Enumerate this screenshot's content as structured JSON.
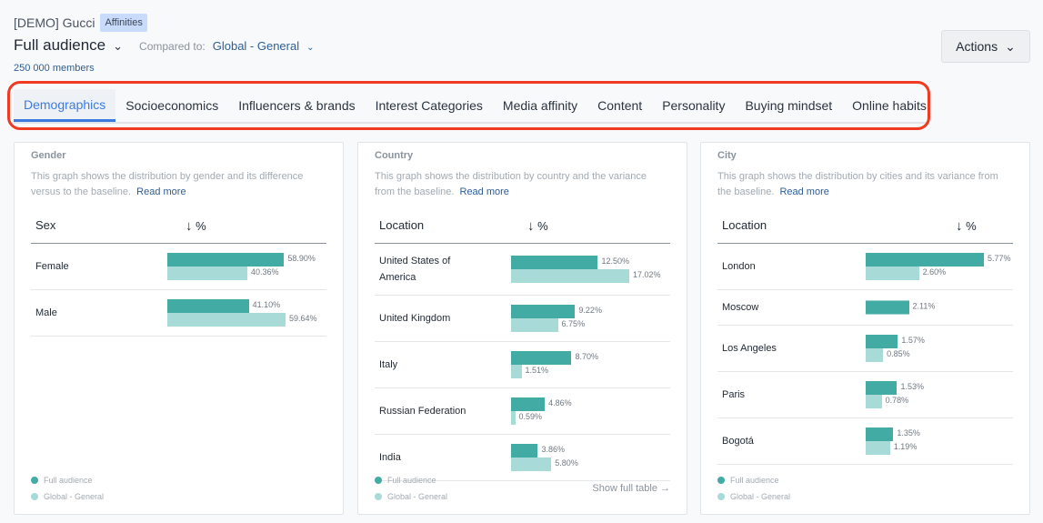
{
  "header": {
    "brand": "[DEMO] Gucci",
    "badge": "Affinities",
    "audience": "Full audience",
    "compared_label": "Compared to:",
    "baseline": "Global - General",
    "members": "250 000 members",
    "actions": "Actions"
  },
  "tabs": [
    "Demographics",
    "Socioeconomics",
    "Influencers & brands",
    "Interest Categories",
    "Media affinity",
    "Content",
    "Personality",
    "Buying mindset",
    "Online habits"
  ],
  "active_tab": 0,
  "colors": {
    "full": "#42aba3",
    "base": "#a8dbd7",
    "accent": "#3b7be0",
    "highlight": "#f03a22"
  },
  "legend": {
    "full": "Full audience",
    "base": "Global - General"
  },
  "read_more": "Read more",
  "show_full": "Show full table →",
  "cards": [
    {
      "title": "Gender",
      "desc": "This graph shows the distribution by gender and its difference versus to the baseline.",
      "col1": "Sex",
      "col2": "%",
      "rows": [
        {
          "label": "Female",
          "full": 58.9,
          "base": 40.36,
          "full_t": "58.90%",
          "base_t": "40.36%"
        },
        {
          "label": "Male",
          "full": 41.1,
          "base": 59.64,
          "full_t": "41.10%",
          "base_t": "59.64%"
        }
      ]
    },
    {
      "title": "Country",
      "desc": "This graph shows the distribution by country and the variance from the baseline.",
      "col1": "Location",
      "col2": "%",
      "rows": [
        {
          "label": "United States of America",
          "full": 12.5,
          "base": 17.02,
          "full_t": "12.50%",
          "base_t": "17.02%"
        },
        {
          "label": "United Kingdom",
          "full": 9.22,
          "base": 6.75,
          "full_t": "9.22%",
          "base_t": "6.75%"
        },
        {
          "label": "Italy",
          "full": 8.7,
          "base": 1.51,
          "full_t": "8.70%",
          "base_t": "1.51%"
        },
        {
          "label": "Russian Federation",
          "full": 4.86,
          "base": 0.59,
          "full_t": "4.86%",
          "base_t": "0.59%"
        },
        {
          "label": "India",
          "full": 3.86,
          "base": 5.8,
          "full_t": "3.86%",
          "base_t": "5.80%"
        }
      ]
    },
    {
      "title": "City",
      "desc": "This graph shows the distribution by cities and its variance from the baseline.",
      "col1": "Location",
      "col2": "%",
      "rows": [
        {
          "label": "London",
          "full": 5.77,
          "base": 2.6,
          "full_t": "5.77%",
          "base_t": "2.60%"
        },
        {
          "label": "Moscow",
          "full": 2.11,
          "base": null,
          "full_t": "2.11%",
          "base_t": null
        },
        {
          "label": "Los Angeles",
          "full": 1.57,
          "base": 0.85,
          "full_t": "1.57%",
          "base_t": "0.85%"
        },
        {
          "label": "Paris",
          "full": 1.53,
          "base": 0.78,
          "full_t": "1.53%",
          "base_t": "0.78%"
        },
        {
          "label": "Bogotá",
          "full": 1.35,
          "base": 1.19,
          "full_t": "1.35%",
          "base_t": "1.19%"
        }
      ]
    }
  ]
}
